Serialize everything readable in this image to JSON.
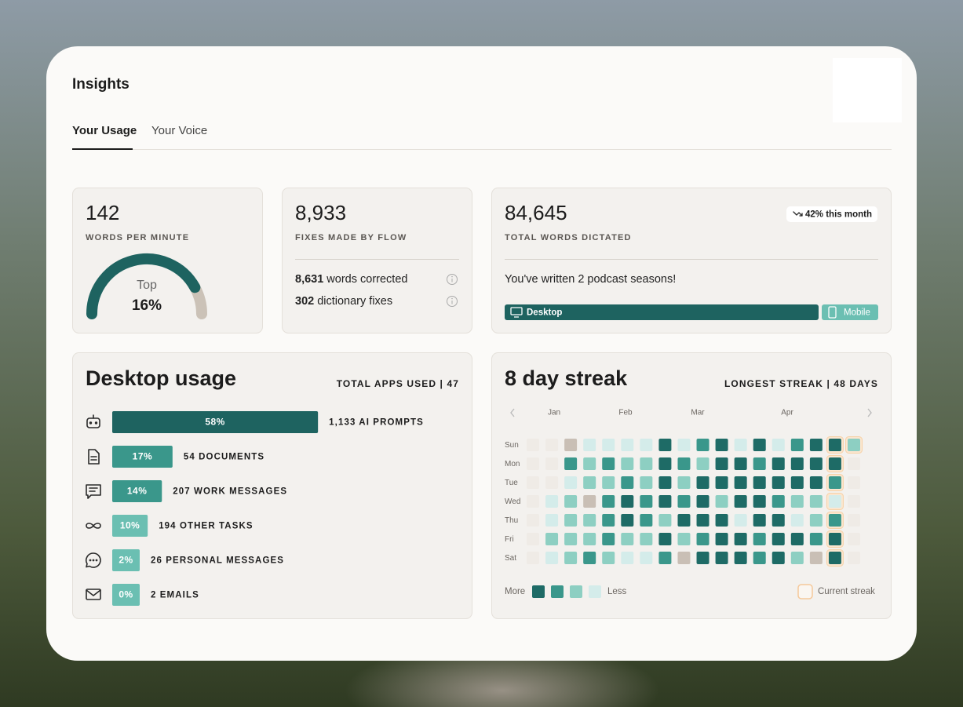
{
  "header": {
    "title": "Insights",
    "tabs": [
      "Your Usage",
      "Your Voice"
    ]
  },
  "wpm": {
    "value": "142",
    "label": "WORDS PER MINUTE",
    "gauge": {
      "prefix": "Top",
      "value": 16,
      "value_label": "16%"
    }
  },
  "fixes": {
    "value": "8,933",
    "label": "FIXES MADE BY FLOW",
    "rows": [
      {
        "value": "8,631",
        "label": "words corrected"
      },
      {
        "value": "302",
        "label": "dictionary fixes"
      }
    ]
  },
  "dictated": {
    "value": "84,645",
    "label": "TOTAL WORDS DICTATED",
    "badge": "42% this month",
    "message": "You've written 2 podcast seasons!",
    "platforms": [
      "Desktop",
      "Mobile"
    ]
  },
  "desktop_usage": {
    "title": "Desktop usage",
    "summary": "TOTAL APPS USED | 47",
    "items": [
      {
        "value": 58,
        "value_label": "58%",
        "label": "1,133 AI PROMPTS",
        "color": "#1e6360"
      },
      {
        "value": 17,
        "value_label": "17%",
        "label": "54 DOCUMENTS",
        "color": "#3a978b"
      },
      {
        "value": 14,
        "value_label": "14%",
        "label": "207 WORK MESSAGES",
        "color": "#3a978b"
      },
      {
        "value": 10,
        "value_label": "10%",
        "label": "194 OTHER TASKS",
        "color": "#6bbfb2"
      },
      {
        "value": 2,
        "value_label": "2%",
        "label": "26 PERSONAL MESSAGES",
        "color": "#6bbfb2"
      },
      {
        "value": 0,
        "value_label": "0%",
        "label": "2 EMAILS",
        "color": "#6bbfb2"
      }
    ]
  },
  "streak": {
    "title": "8 day streak",
    "summary": "LONGEST STREAK | 48 DAYS",
    "months": [
      "Jan",
      "Feb",
      "Mar",
      "Apr"
    ],
    "days": [
      "Sun",
      "Mon",
      "Tue",
      "Wed",
      "Thu",
      "Fri",
      "Sat"
    ],
    "grid": [
      [
        0,
        0,
        5,
        1,
        1,
        1,
        1,
        4,
        1,
        3,
        4,
        1,
        4,
        1,
        3,
        4,
        4,
        2
      ],
      [
        0,
        0,
        3,
        2,
        3,
        2,
        2,
        4,
        3,
        2,
        4,
        4,
        3,
        4,
        4,
        4,
        4,
        0
      ],
      [
        0,
        0,
        1,
        2,
        2,
        3,
        2,
        4,
        2,
        4,
        4,
        4,
        4,
        4,
        4,
        4,
        3,
        0
      ],
      [
        0,
        1,
        2,
        5,
        3,
        4,
        3,
        4,
        3,
        4,
        2,
        4,
        4,
        3,
        2,
        2,
        1,
        0
      ],
      [
        0,
        1,
        2,
        2,
        3,
        4,
        3,
        2,
        4,
        4,
        4,
        1,
        4,
        4,
        1,
        2,
        3,
        0
      ],
      [
        0,
        2,
        2,
        2,
        3,
        2,
        2,
        4,
        2,
        3,
        4,
        4,
        3,
        4,
        4,
        3,
        4,
        0
      ],
      [
        0,
        1,
        2,
        3,
        2,
        1,
        1,
        3,
        5,
        4,
        4,
        4,
        3,
        4,
        2,
        5,
        4,
        0
      ]
    ],
    "level_colors": [
      "#efebe6",
      "#d4ecea",
      "#8dcfc2",
      "#3a978b",
      "#1e6b66",
      "#c9bfb5"
    ],
    "legend": {
      "more": "More",
      "less": "Less",
      "current": "Current streak"
    }
  }
}
